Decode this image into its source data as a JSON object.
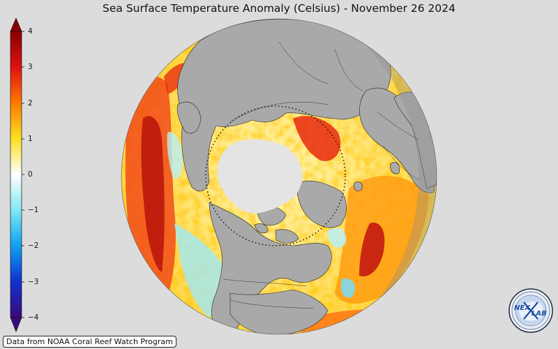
{
  "title": "Sea Surface Temperature Anomaly (Celsius) - November 26 2024",
  "colorbar": {
    "min": -4,
    "max": 4,
    "ticks": [
      "4",
      "3",
      "2",
      "1",
      "0",
      "−1",
      "−2",
      "−3",
      "−4"
    ],
    "colors": [
      "#3a0a7a",
      "#1a3cd8",
      "#1aa0f0",
      "#8ee8f5",
      "#ffffff",
      "#ffe23a",
      "#ff9a10",
      "#e82010",
      "#8a0000"
    ]
  },
  "map": {
    "projection": "orthographic, north polar view",
    "land_color": "#a9a9a9",
    "sea_ice_color": "#e4e4e4",
    "warm_color": "#e32a14",
    "cool_color": "#a8ecf6"
  },
  "credit": "Data from NOAA Coral Reef Watch Program",
  "logo": {
    "text_left": "NEX",
    "text_right": "LAB"
  }
}
